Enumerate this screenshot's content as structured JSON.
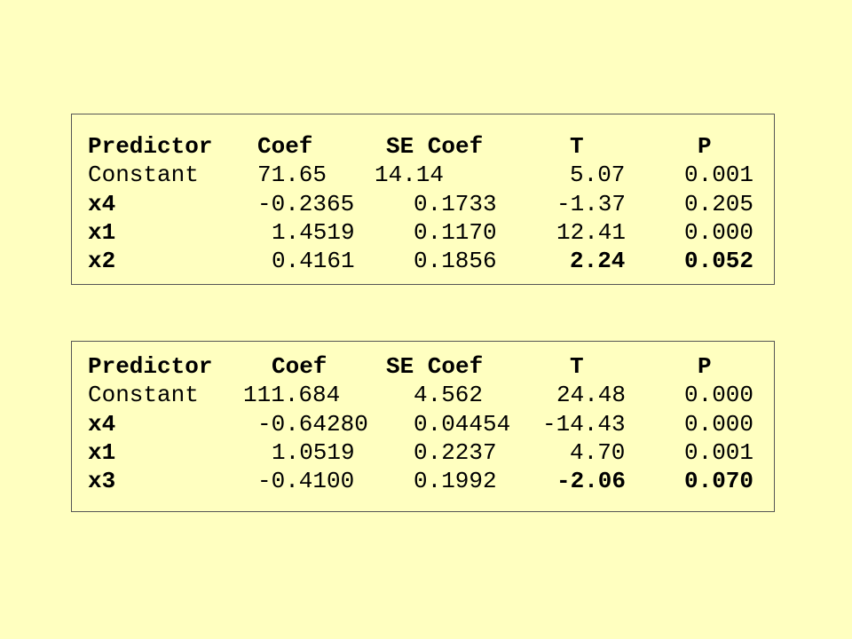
{
  "tables": [
    {
      "header": [
        "Predictor",
        "Coef",
        "SE Coef",
        "T",
        "P"
      ],
      "rows": [
        [
          "Constant",
          "71.65",
          "14.14",
          "5.07",
          "0.001"
        ],
        [
          "x4",
          "-0.2365",
          "0.1733",
          "-1.37",
          "0.205"
        ],
        [
          "x1",
          "1.4519",
          "0.1170",
          "12.41",
          "0.000"
        ],
        [
          "x2",
          "0.4161",
          "0.1856",
          "2.24",
          "0.052"
        ]
      ]
    },
    {
      "header": [
        "Predictor",
        "Coef",
        "SE Coef",
        "T",
        "P"
      ],
      "rows": [
        [
          "Constant",
          "111.684",
          "4.562",
          "24.48",
          "0.000"
        ],
        [
          "x4",
          "-0.64280",
          "0.04454",
          "-14.43",
          "0.000"
        ],
        [
          "x1",
          "1.0519",
          "0.2237",
          "4.70",
          "0.001"
        ],
        [
          "x3",
          "-0.4100",
          "0.1992",
          "-2.06",
          "0.070"
        ]
      ]
    }
  ]
}
